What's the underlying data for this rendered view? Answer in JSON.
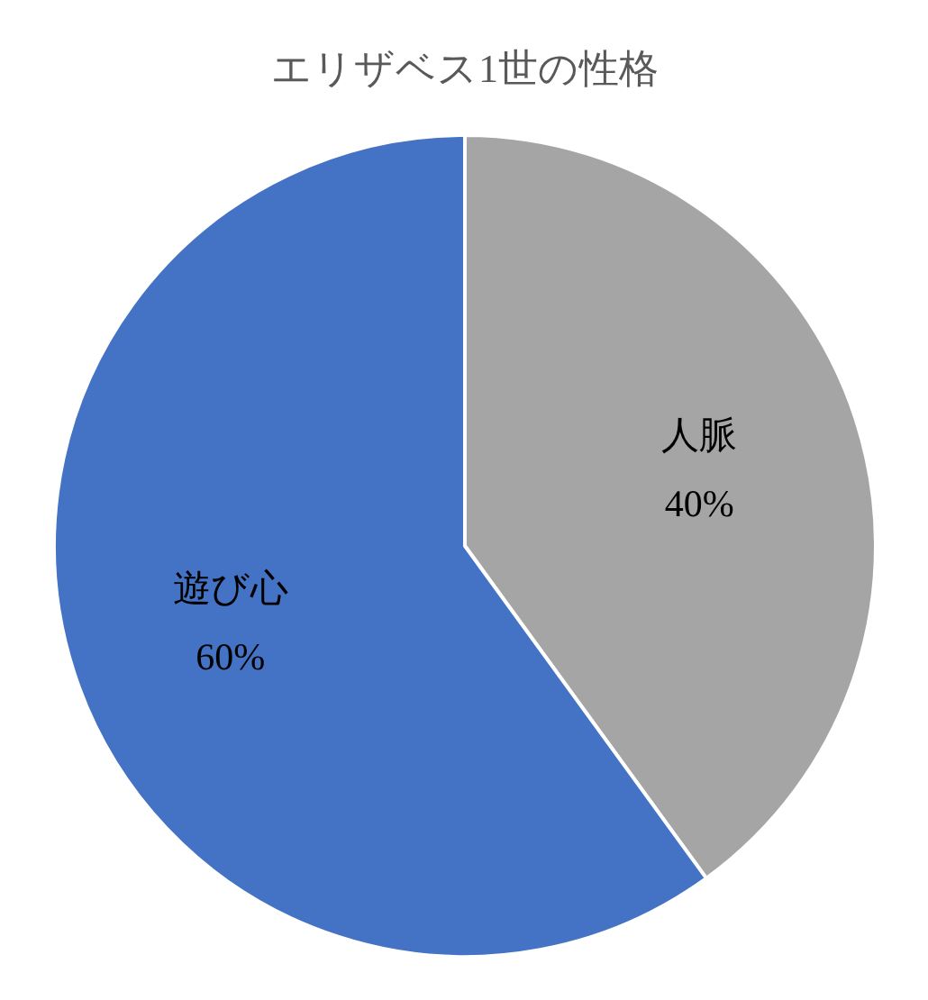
{
  "chart_data": {
    "type": "pie",
    "title": "エリザベス1世の性格",
    "categories": [
      "人脈",
      "遊び心"
    ],
    "values": [
      40,
      60
    ],
    "colors": [
      "#a5a5a5",
      "#4472c4"
    ],
    "value_labels": [
      "40%",
      "60%"
    ],
    "legend": false
  }
}
